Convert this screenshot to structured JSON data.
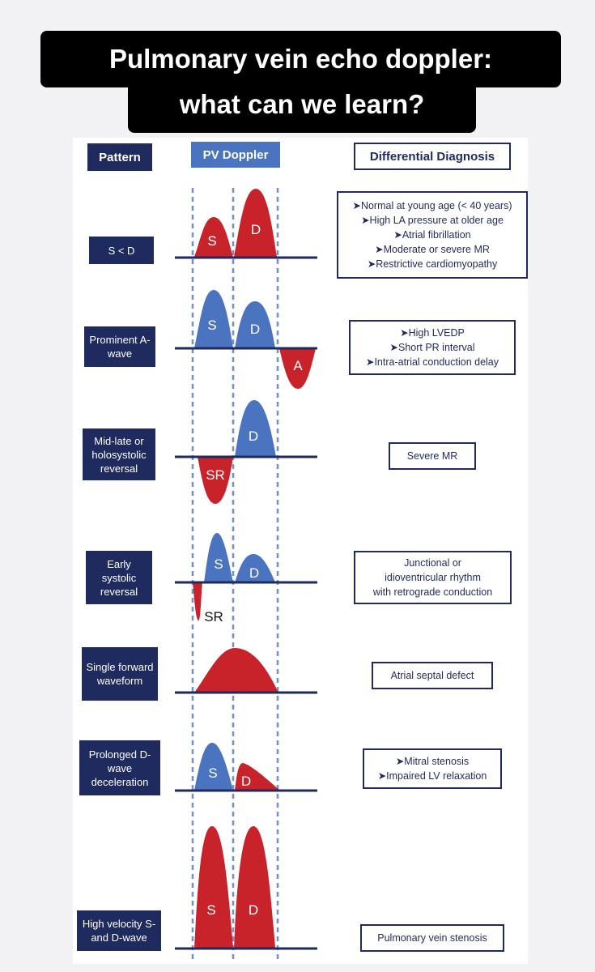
{
  "title": {
    "line1": "Pulmonary vein echo doppler:",
    "line2": "what can we learn?"
  },
  "headers": {
    "pattern": "Pattern",
    "pv_doppler": "PV Doppler",
    "differential": "Differential Diagnosis"
  },
  "colors": {
    "navy": "#1f2a5e",
    "blue": "#4a74c0",
    "red": "#c8232b",
    "dashed": "#6f8fcf"
  },
  "rows": [
    {
      "pattern": "S < D",
      "diagnosis": [
        "➤Normal at young age (< 40 years)",
        "➤High LA pressure at older age",
        "➤Atrial fibrillation",
        "➤Moderate or severe MR",
        "➤Restrictive cardiomyopathy"
      ],
      "waves": [
        "S",
        "D"
      ]
    },
    {
      "pattern": "Prominent A-wave",
      "diagnosis": [
        "➤High LVEDP",
        "➤Short PR interval",
        "➤Intra-atrial conduction delay"
      ],
      "waves": [
        "S",
        "D",
        "A"
      ]
    },
    {
      "pattern": "Mid-late or holosystolic reversal",
      "diagnosis": [
        "Severe MR"
      ],
      "waves": [
        "SR",
        "D"
      ]
    },
    {
      "pattern": "Early systolic reversal",
      "diagnosis": [
        "Junctional or",
        "idioventricular rhythm",
        "with retrograde conduction"
      ],
      "waves": [
        "S",
        "D",
        "SR"
      ]
    },
    {
      "pattern": "Single forward waveform",
      "diagnosis": [
        "Atrial septal defect"
      ],
      "waves": []
    },
    {
      "pattern": "Prolonged D-wave deceleration",
      "diagnosis": [
        "➤Mitral stenosis",
        "➤Impaired LV relaxation"
      ],
      "waves": [
        "S",
        "D"
      ]
    },
    {
      "pattern": "High velocity S- and D-wave",
      "diagnosis": [
        "Pulmonary vein stenosis"
      ],
      "waves": [
        "S",
        "D"
      ]
    }
  ]
}
